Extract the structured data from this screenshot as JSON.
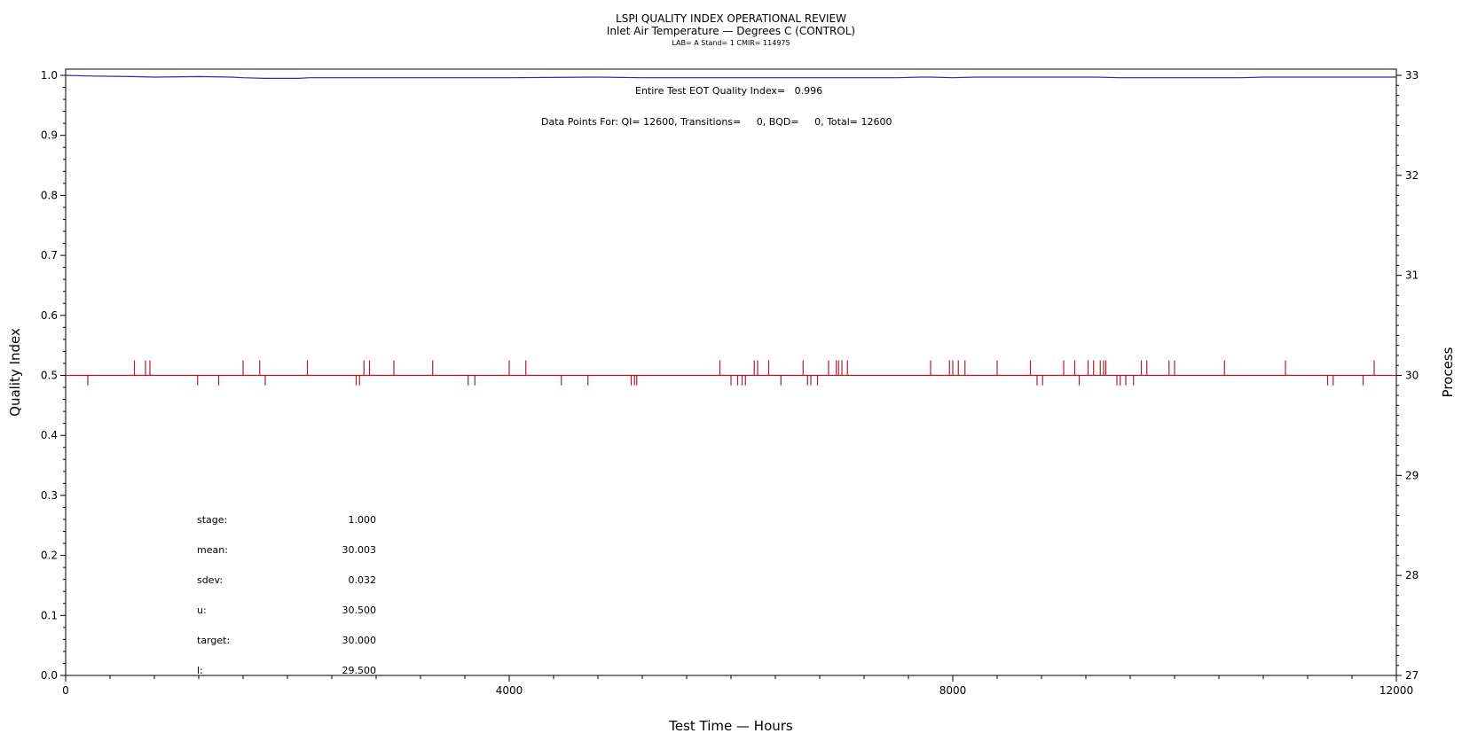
{
  "chart_data": {
    "type": "line",
    "title": "LSPI QUALITY INDEX OPERATIONAL REVIEW",
    "subtitle": "Inlet Air Temperature — Degrees C (CONTROL)",
    "subsubtitle": "LAB= A Stand= 1 CMIR= 114975",
    "annotations": {
      "eot": "Entire Test EOT Quality Index=   0.996",
      "points": "Data Points For: QI= 12600, Transitions=     0, BQD=     0, Total= 12600"
    },
    "xlabel": "Test Time — Hours",
    "ylabel": "Quality Index",
    "y2label": "Process",
    "xlim": [
      0,
      12000
    ],
    "ylim": [
      0.0,
      1.0
    ],
    "y2lim": [
      27,
      33
    ],
    "x_ticks": [
      "0",
      "4000",
      "8000",
      "12000"
    ],
    "y_ticks": [
      "0.0",
      "0.1",
      "0.2",
      "0.3",
      "0.4",
      "0.5",
      "0.6",
      "0.7",
      "0.8",
      "0.9",
      "1.0"
    ],
    "y2_ticks": [
      "27",
      "28",
      "29",
      "30",
      "31",
      "32",
      "33"
    ],
    "grid": false,
    "series": [
      {
        "axis": "left",
        "color": "#2b2bb0",
        "x": [
          0,
          200,
          600,
          800,
          1200,
          1500,
          1600,
          1800,
          2100,
          2200,
          4000,
          4800,
          5200,
          5400,
          7500,
          7700,
          7800,
          8000,
          8200,
          9300,
          9500,
          10600,
          10800,
          12000
        ],
        "y": [
          1.0,
          0.999,
          0.998,
          0.997,
          0.998,
          0.997,
          0.996,
          0.995,
          0.995,
          0.996,
          0.996,
          0.997,
          0.996,
          0.996,
          0.996,
          0.997,
          0.997,
          0.996,
          0.997,
          0.997,
          0.996,
          0.996,
          0.997,
          0.997
        ]
      },
      {
        "axis": "right",
        "color": "#b01c2e",
        "baseline": 30.0,
        "x_up": [
          620,
          720,
          760,
          1600,
          1750,
          2180,
          2690,
          2740,
          2960,
          3310,
          4000,
          4150,
          5900,
          6210,
          6240,
          6340,
          6650,
          6880,
          6950,
          6970,
          7000,
          7050,
          7800,
          7970,
          8000,
          8050,
          8110,
          8400,
          8700,
          9000,
          9100,
          9220,
          9270,
          9330,
          9360,
          9380,
          9700,
          9750,
          9950,
          10000,
          10450,
          11000,
          11800
        ],
        "x_down": [
          200,
          1190,
          1380,
          1800,
          2620,
          2650,
          3630,
          3690,
          4470,
          4710,
          5100,
          5130,
          5150,
          6000,
          6060,
          6100,
          6130,
          6450,
          6690,
          6720,
          6780,
          8760,
          8810,
          9140,
          9480,
          9510,
          9560,
          9630,
          11380,
          11430,
          11700
        ]
      }
    ],
    "stats": [
      {
        "label": "stage:",
        "value": "1.000"
      },
      {
        "label": "mean:",
        "value": "30.003"
      },
      {
        "label": "sdev:",
        "value": "0.032"
      },
      {
        "label": "u:",
        "value": "30.500"
      },
      {
        "label": "target:",
        "value": "30.000"
      },
      {
        "label": "l:",
        "value": "29.500"
      }
    ]
  }
}
